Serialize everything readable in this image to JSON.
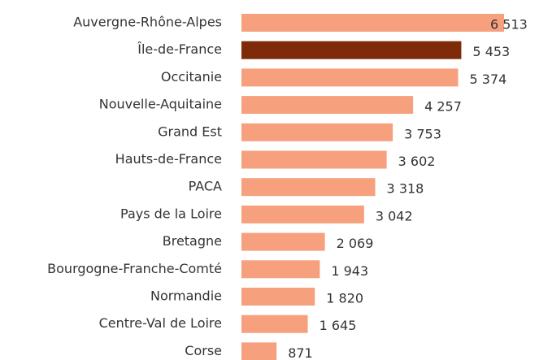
{
  "chart_data": {
    "type": "barh",
    "categories": [
      "Auvergne-Rhône-Alpes",
      "Île-de-France",
      "Occitanie",
      "Nouvelle-Aquitaine",
      "Grand Est",
      "Hauts-de-France",
      "PACA",
      "Pays de la Loire",
      "Bretagne",
      "Bourgogne-Franche-Comté",
      "Normandie",
      "Centre-Val de Loire",
      "Corse"
    ],
    "values": [
      6513,
      5453,
      5374,
      4257,
      3753,
      3602,
      3318,
      3042,
      2069,
      1943,
      1820,
      1645,
      871
    ],
    "value_labels": [
      "6 513",
      "5 453",
      "5 374",
      "4 257",
      "3 753",
      "3 602",
      "3 318",
      "3 042",
      "2 069",
      "1 943",
      "1 820",
      "1 645",
      "871"
    ],
    "colors": [
      "#f6a07e",
      "#7f2a08",
      "#f6a07e",
      "#f6a07e",
      "#f6a07e",
      "#f6a07e",
      "#f6a07e",
      "#f6a07e",
      "#f6a07e",
      "#f6a07e",
      "#f6a07e",
      "#f6a07e",
      "#f6a07e"
    ]
  }
}
